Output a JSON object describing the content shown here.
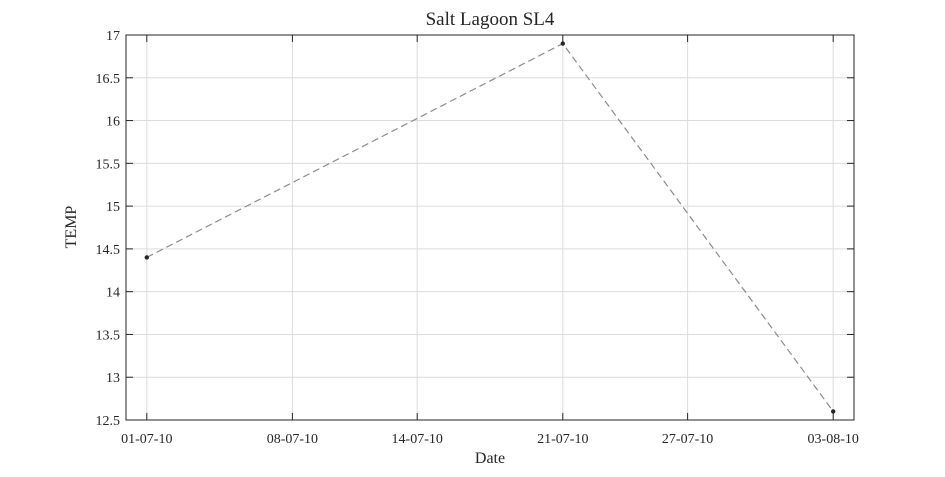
{
  "chart_data": {
    "type": "line",
    "title": "Salt Lagoon SL4",
    "xlabel": "Date",
    "ylabel": "TEMP",
    "x_tick_labels": [
      "01-07-10",
      "08-07-10",
      "14-07-10",
      "21-07-10",
      "27-07-10",
      "03-08-10"
    ],
    "y_tick_labels": [
      "12.5",
      "13",
      "13.5",
      "14",
      "14.5",
      "15",
      "15.5",
      "16",
      "16.5",
      "17"
    ],
    "ylim": [
      12.5,
      17
    ],
    "xlim": [
      "2010-06-30",
      "2010-08-04"
    ],
    "grid": true,
    "line_style": "dashed",
    "line_color": "#8c8c8c",
    "marker_color": "#262626",
    "series": [
      {
        "x": [
          "2010-07-01",
          "2010-07-21",
          "2010-08-03"
        ],
        "y": [
          14.4,
          16.9,
          12.6
        ]
      }
    ]
  }
}
